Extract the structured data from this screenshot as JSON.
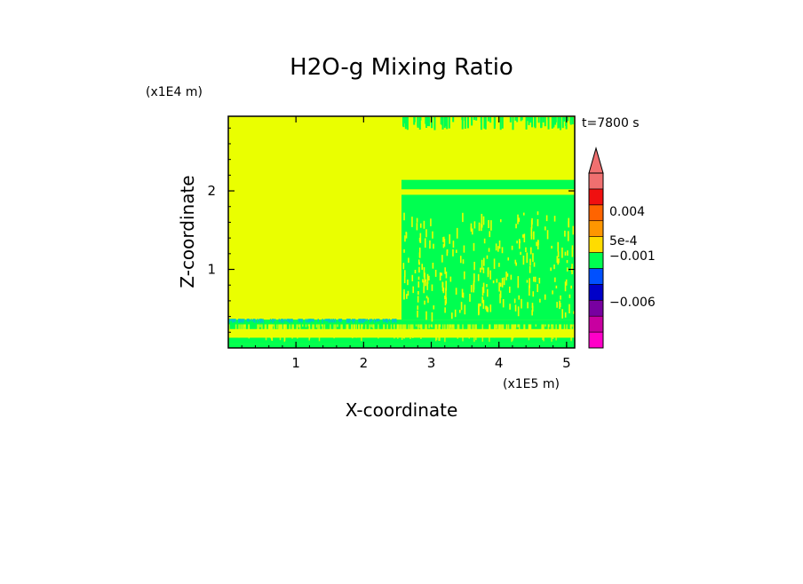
{
  "chart_data": {
    "type": "heatmap",
    "title": "H2O-g Mixing Ratio",
    "xlabel": "X-coordinate",
    "ylabel": "Z-coordinate",
    "x_scale_label": "(x1E5 m)",
    "y_scale_label": "(x1E4 m)",
    "time_label": "t=7800 s",
    "x_ticks": [
      "1",
      "2",
      "3",
      "4",
      "5"
    ],
    "y_ticks": [
      "1",
      "2"
    ],
    "xlim": [
      0,
      5.12
    ],
    "ylim": [
      0,
      2.95
    ],
    "colorbar": {
      "labels": [
        "0.004",
        "5e-4",
        "−0.001",
        "−0.006"
      ],
      "colors": [
        "#ff00c8",
        "#c800a0",
        "#7800a0",
        "#0000c8",
        "#0050ff",
        "#00ff50",
        "#ffdc00",
        "#ff9600",
        "#ff6400",
        "#f01010",
        "#f07070"
      ],
      "extend_top": true
    },
    "regions": [
      {
        "x": [
          0,
          5.12
        ],
        "y": [
          0,
          0.05
        ],
        "color": "#00ff50"
      },
      {
        "x": [
          0,
          5.12
        ],
        "y": [
          0.05,
          0.13
        ],
        "color": "#00ff50"
      },
      {
        "x": [
          0,
          5.12
        ],
        "y": [
          0.24,
          0.36
        ],
        "color": "#00ff50"
      },
      {
        "x": [
          2.56,
          5.12
        ],
        "y": [
          0.36,
          1.95
        ],
        "color": "#00ff50"
      },
      {
        "x": [
          2.56,
          5.12
        ],
        "y": [
          2.02,
          2.14
        ],
        "color": "#00ff50"
      }
    ],
    "background_color": "#eaff00"
  }
}
